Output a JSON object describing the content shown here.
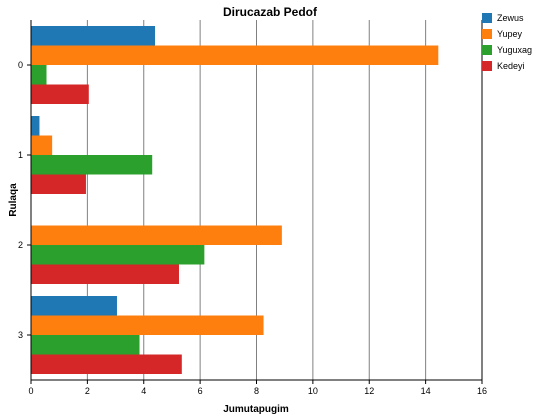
{
  "chart_data": {
    "type": "bar",
    "orientation": "horizontal",
    "title": "Dirucazab Pedof",
    "xlabel": "Jumutapugim",
    "ylabel": "Rulaqa",
    "xlim": [
      0,
      16
    ],
    "xticks": [
      "0",
      "2",
      "4",
      "6",
      "8",
      "10",
      "12",
      "14",
      "16"
    ],
    "categories": [
      "0",
      "1",
      "2",
      "3"
    ],
    "grid": true,
    "legend_position": "top-right",
    "series": [
      {
        "name": "Zewus",
        "color": "#1f77b4",
        "values": [
          4.4,
          0.3,
          0.0,
          3.05
        ]
      },
      {
        "name": "Yupey",
        "color": "#ff7f0e",
        "values": [
          14.45,
          0.75,
          8.9,
          8.25
        ]
      },
      {
        "name": "Yuguxag",
        "color": "#2ca02c",
        "values": [
          0.55,
          4.3,
          6.15,
          3.85
        ]
      },
      {
        "name": "Kedeyi",
        "color": "#d62728",
        "values": [
          2.05,
          1.95,
          5.25,
          5.35
        ]
      }
    ]
  }
}
